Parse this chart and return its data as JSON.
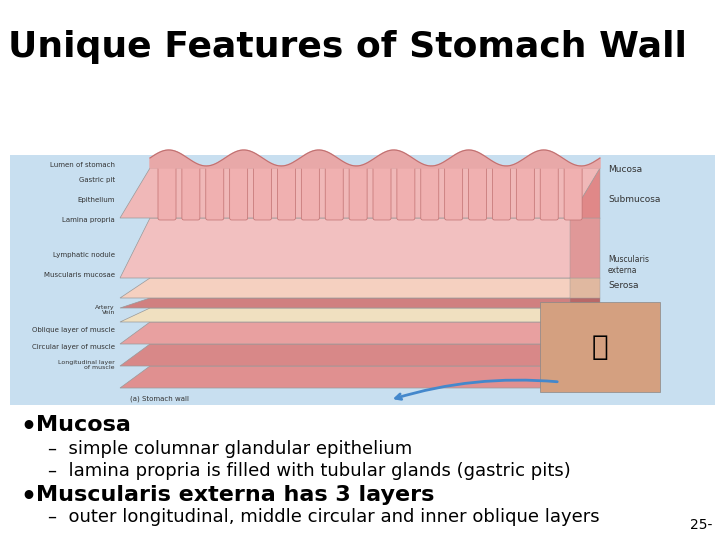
{
  "title": "Unique Features of Stomach Wall",
  "title_fontsize": 26,
  "title_fontweight": "bold",
  "title_color": "#000000",
  "background_color": "#ffffff",
  "bullet1": "Mucosa",
  "bullet1_fontsize": 16,
  "bullet1_fontweight": "bold",
  "sub1a": "simple columnar glandular epithelium",
  "sub1b": "lamina propria is filled with tubular glands (gastric pits)",
  "bullet2": "Muscularis externa has 3 layers",
  "bullet2_fontsize": 16,
  "bullet2_fontweight": "bold",
  "sub2a": "outer longitudinal, middle circular and inner oblique layers",
  "sub_fontsize": 13,
  "page_num": "25-",
  "page_num_fontsize": 10,
  "img_bg_color": "#c8dff0",
  "layer_pink_light": "#f5c8c8",
  "layer_pink_mid": "#e8a0a0",
  "layer_pink_dark": "#d07878",
  "layer_cream": "#f0e8d0",
  "layer_tan": "#d4b896",
  "mucosa_top": "#e8b4b8",
  "font_family": "DejaVu Sans"
}
